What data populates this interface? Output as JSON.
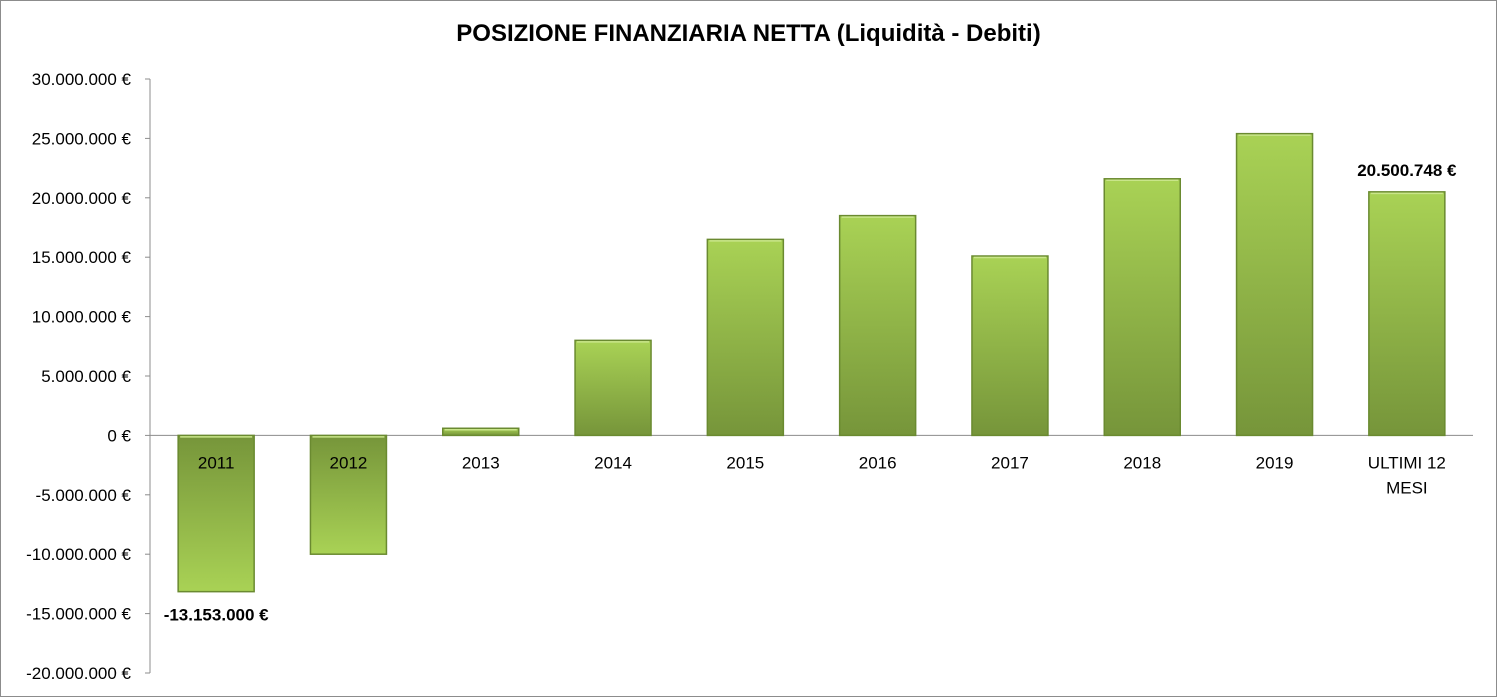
{
  "chart_data": {
    "type": "bar",
    "title": "POSIZIONE FINANZIARIA NETTA (Liquidità - Debiti)",
    "categories": [
      "2011",
      "2012",
      "2013",
      "2014",
      "2015",
      "2016",
      "2017",
      "2018",
      "2019",
      "ULTIMI 12 MESI"
    ],
    "category_lines": [
      [
        "2011"
      ],
      [
        "2012"
      ],
      [
        "2013"
      ],
      [
        "2014"
      ],
      [
        "2015"
      ],
      [
        "2016"
      ],
      [
        "2017"
      ],
      [
        "2018"
      ],
      [
        "2019"
      ],
      [
        "ULTIMI 12",
        "MESI"
      ]
    ],
    "values": [
      -13153000,
      -10000000,
      600000,
      8000000,
      16500000,
      18500000,
      15100000,
      21600000,
      25400000,
      20500748
    ],
    "ylim": [
      -20000000,
      30000000
    ],
    "yticks": [
      "30.000.000 €",
      "25.000.000 €",
      "20.000.000 €",
      "15.000.000 €",
      "10.000.000 €",
      "5.000.000 €",
      "0 €",
      "-5.000.000 €",
      "-10.000.000 €",
      "-15.000.000 €",
      "-20.000.000 €"
    ],
    "ytick_values": [
      30000000,
      25000000,
      20000000,
      15000000,
      10000000,
      5000000,
      0,
      -5000000,
      -10000000,
      -15000000,
      -20000000
    ],
    "data_labels": [
      {
        "index": 0,
        "text": "-13.153.000 €"
      },
      {
        "index": 9,
        "text": "20.500.748 €"
      }
    ],
    "colors": {
      "bar_light": "#a9d255",
      "bar_dark": "#76953a",
      "axis": "#8c8c8c"
    },
    "grid": false,
    "legend": "none"
  }
}
